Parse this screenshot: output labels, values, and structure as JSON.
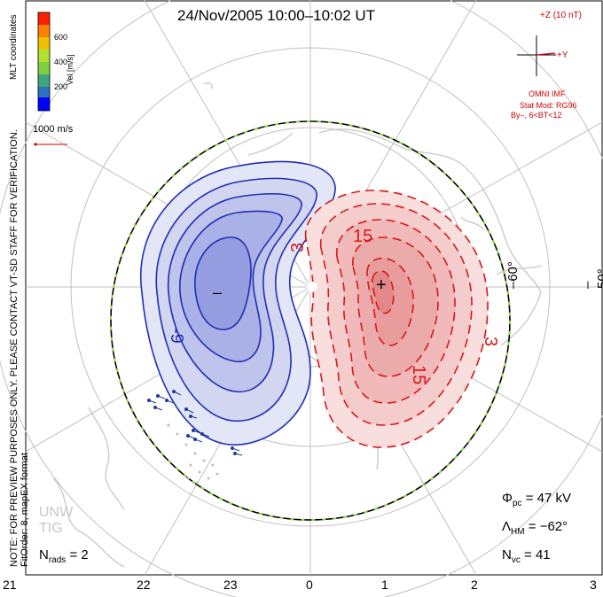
{
  "title": "24/Nov/2005 10:00–10:02 UT",
  "colors": {
    "negative": "#1f2fb5",
    "positive": "#d81818",
    "boundary_dash": "#8fd94a",
    "grid": "#c0c0c0",
    "land": "#cccccc"
  },
  "colorbar": {
    "units": "Vel [m/s]",
    "ticks": [
      "600",
      "400",
      "200"
    ],
    "colors": [
      "#0000ff",
      "#2f6fbf",
      "#3fa77f",
      "#7fd040",
      "#b0e030",
      "#f0c000",
      "#ff8000",
      "#ff2000"
    ]
  },
  "coordinate_system": "MLT coordinates",
  "velocity_scale": "1000 m/s",
  "imf": {
    "z_label": "+Z (10 nT)",
    "y_label": "+Y",
    "source": "OMNI IMF",
    "stat_mod": "Stat Mod: RG96",
    "stat_bin": "By–, 6<BT<12"
  },
  "contour_labels": {
    "neg_9": "-9",
    "pos_3a": "3",
    "pos_3b": "3",
    "pos_15a": "15",
    "pos_15b": "15",
    "min_marker": "–",
    "max_marker": "+"
  },
  "latitude_labels": [
    "–60°",
    "–50°"
  ],
  "mlt_ticks": [
    "21",
    "22",
    "23",
    "0",
    "1",
    "2",
    "3"
  ],
  "stats": {
    "phi_pc_symbol": "Φ",
    "phi_pc_sub": "pc",
    "phi_pc_value": "= 47 kV",
    "lambda_hm_symbol": "Λ",
    "lambda_hm_sub": "HM",
    "lambda_hm_value": "= −62°",
    "n_vc_symbol": "N",
    "n_vc_sub": "vc",
    "n_vc_value": "= 41",
    "n_rads_symbol": "N",
    "n_rads_sub": "rads",
    "n_rads_value": "= 2"
  },
  "notes": {
    "preview": "NOTE: FOR PREVIEW PURPOSES ONLY. PLEASE CONTACT VT-SD STAFF FOR VERIFICATION.",
    "fit_order": "FitOrder: 8, mapEX format"
  },
  "watermark": [
    "UNW",
    "TIG"
  ]
}
